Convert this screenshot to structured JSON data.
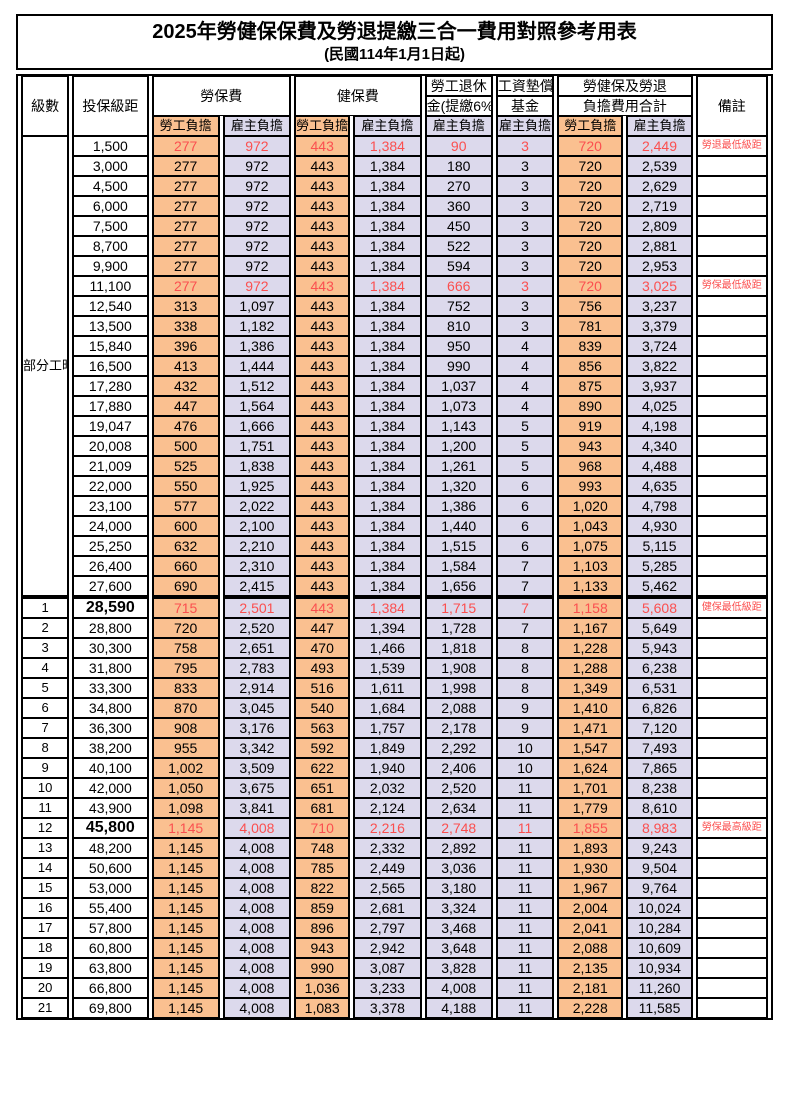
{
  "title": "2025年勞健保保費及勞退提繳三合一費用對照參考用表",
  "subtitle": "(民國114年1月1日起)",
  "header": {
    "col_level": "級數",
    "col_bracket": "投保級距",
    "col_labor": "勞保費",
    "col_health": "健保費",
    "col_pension_1": "勞工退休",
    "col_pension_2": "金(提繳6%)",
    "col_fund_1": "工資墊償",
    "col_fund_2": "基金",
    "col_total_1": "勞健保及勞退",
    "col_total_2": "負擔費用合計",
    "col_remark": "備註",
    "sub_employee": "勞工負擔",
    "sub_employer": "雇主負擔"
  },
  "part_time_label": "部分工時",
  "colors": {
    "employee_bg": "#FAC090",
    "employer_bg": "#DCD9EC",
    "highlight_text": "#FB4F4F"
  },
  "rows": [
    {
      "b": "1,500",
      "v": [
        "277",
        "972",
        "443",
        "1,384",
        "90",
        "3",
        "720",
        "2,449"
      ],
      "r": "勞退最低級距",
      "h": true
    },
    {
      "b": "3,000",
      "v": [
        "277",
        "972",
        "443",
        "1,384",
        "180",
        "3",
        "720",
        "2,539"
      ]
    },
    {
      "b": "4,500",
      "v": [
        "277",
        "972",
        "443",
        "1,384",
        "270",
        "3",
        "720",
        "2,629"
      ]
    },
    {
      "b": "6,000",
      "v": [
        "277",
        "972",
        "443",
        "1,384",
        "360",
        "3",
        "720",
        "2,719"
      ]
    },
    {
      "b": "7,500",
      "v": [
        "277",
        "972",
        "443",
        "1,384",
        "450",
        "3",
        "720",
        "2,809"
      ]
    },
    {
      "b": "8,700",
      "v": [
        "277",
        "972",
        "443",
        "1,384",
        "522",
        "3",
        "720",
        "2,881"
      ]
    },
    {
      "b": "9,900",
      "v": [
        "277",
        "972",
        "443",
        "1,384",
        "594",
        "3",
        "720",
        "2,953"
      ]
    },
    {
      "b": "11,100",
      "v": [
        "277",
        "972",
        "443",
        "1,384",
        "666",
        "3",
        "720",
        "3,025"
      ],
      "r": "勞保最低級距",
      "h": true
    },
    {
      "b": "12,540",
      "v": [
        "313",
        "1,097",
        "443",
        "1,384",
        "752",
        "3",
        "756",
        "3,237"
      ]
    },
    {
      "b": "13,500",
      "v": [
        "338",
        "1,182",
        "443",
        "1,384",
        "810",
        "3",
        "781",
        "3,379"
      ]
    },
    {
      "b": "15,840",
      "v": [
        "396",
        "1,386",
        "443",
        "1,384",
        "950",
        "4",
        "839",
        "3,724"
      ]
    },
    {
      "b": "16,500",
      "v": [
        "413",
        "1,444",
        "443",
        "1,384",
        "990",
        "4",
        "856",
        "3,822"
      ]
    },
    {
      "b": "17,280",
      "v": [
        "432",
        "1,512",
        "443",
        "1,384",
        "1,037",
        "4",
        "875",
        "3,937"
      ]
    },
    {
      "b": "17,880",
      "v": [
        "447",
        "1,564",
        "443",
        "1,384",
        "1,073",
        "4",
        "890",
        "4,025"
      ]
    },
    {
      "b": "19,047",
      "v": [
        "476",
        "1,666",
        "443",
        "1,384",
        "1,143",
        "5",
        "919",
        "4,198"
      ]
    },
    {
      "b": "20,008",
      "v": [
        "500",
        "1,751",
        "443",
        "1,384",
        "1,200",
        "5",
        "943",
        "4,340"
      ]
    },
    {
      "b": "21,009",
      "v": [
        "525",
        "1,838",
        "443",
        "1,384",
        "1,261",
        "5",
        "968",
        "4,488"
      ]
    },
    {
      "b": "22,000",
      "v": [
        "550",
        "1,925",
        "443",
        "1,384",
        "1,320",
        "6",
        "993",
        "4,635"
      ]
    },
    {
      "b": "23,100",
      "v": [
        "577",
        "2,022",
        "443",
        "1,384",
        "1,386",
        "6",
        "1,020",
        "4,798"
      ]
    },
    {
      "b": "24,000",
      "v": [
        "600",
        "2,100",
        "443",
        "1,384",
        "1,440",
        "6",
        "1,043",
        "4,930"
      ]
    },
    {
      "b": "25,250",
      "v": [
        "632",
        "2,210",
        "443",
        "1,384",
        "1,515",
        "6",
        "1,075",
        "5,115"
      ]
    },
    {
      "b": "26,400",
      "v": [
        "660",
        "2,310",
        "443",
        "1,384",
        "1,584",
        "7",
        "1,103",
        "5,285"
      ]
    },
    {
      "b": "27,600",
      "v": [
        "690",
        "2,415",
        "443",
        "1,384",
        "1,656",
        "7",
        "1,133",
        "5,462"
      ]
    },
    {
      "l": "1",
      "b": "28,590",
      "v": [
        "715",
        "2,501",
        "443",
        "1,384",
        "1,715",
        "7",
        "1,158",
        "5,608"
      ],
      "r": "健保最低級距",
      "h": true,
      "em": true,
      "sep": true
    },
    {
      "l": "2",
      "b": "28,800",
      "v": [
        "720",
        "2,520",
        "447",
        "1,394",
        "1,728",
        "7",
        "1,167",
        "5,649"
      ]
    },
    {
      "l": "3",
      "b": "30,300",
      "v": [
        "758",
        "2,651",
        "470",
        "1,466",
        "1,818",
        "8",
        "1,228",
        "5,943"
      ]
    },
    {
      "l": "4",
      "b": "31,800",
      "v": [
        "795",
        "2,783",
        "493",
        "1,539",
        "1,908",
        "8",
        "1,288",
        "6,238"
      ]
    },
    {
      "l": "5",
      "b": "33,300",
      "v": [
        "833",
        "2,914",
        "516",
        "1,611",
        "1,998",
        "8",
        "1,349",
        "6,531"
      ]
    },
    {
      "l": "6",
      "b": "34,800",
      "v": [
        "870",
        "3,045",
        "540",
        "1,684",
        "2,088",
        "9",
        "1,410",
        "6,826"
      ]
    },
    {
      "l": "7",
      "b": "36,300",
      "v": [
        "908",
        "3,176",
        "563",
        "1,757",
        "2,178",
        "9",
        "1,471",
        "7,120"
      ]
    },
    {
      "l": "8",
      "b": "38,200",
      "v": [
        "955",
        "3,342",
        "592",
        "1,849",
        "2,292",
        "10",
        "1,547",
        "7,493"
      ]
    },
    {
      "l": "9",
      "b": "40,100",
      "v": [
        "1,002",
        "3,509",
        "622",
        "1,940",
        "2,406",
        "10",
        "1,624",
        "7,865"
      ]
    },
    {
      "l": "10",
      "b": "42,000",
      "v": [
        "1,050",
        "3,675",
        "651",
        "2,032",
        "2,520",
        "11",
        "1,701",
        "8,238"
      ]
    },
    {
      "l": "11",
      "b": "43,900",
      "v": [
        "1,098",
        "3,841",
        "681",
        "2,124",
        "2,634",
        "11",
        "1,779",
        "8,610"
      ]
    },
    {
      "l": "12",
      "b": "45,800",
      "v": [
        "1,145",
        "4,008",
        "710",
        "2,216",
        "2,748",
        "11",
        "1,855",
        "8,983"
      ],
      "r": "勞保最高級距",
      "h": true,
      "em": true
    },
    {
      "l": "13",
      "b": "48,200",
      "v": [
        "1,145",
        "4,008",
        "748",
        "2,332",
        "2,892",
        "11",
        "1,893",
        "9,243"
      ]
    },
    {
      "l": "14",
      "b": "50,600",
      "v": [
        "1,145",
        "4,008",
        "785",
        "2,449",
        "3,036",
        "11",
        "1,930",
        "9,504"
      ]
    },
    {
      "l": "15",
      "b": "53,000",
      "v": [
        "1,145",
        "4,008",
        "822",
        "2,565",
        "3,180",
        "11",
        "1,967",
        "9,764"
      ]
    },
    {
      "l": "16",
      "b": "55,400",
      "v": [
        "1,145",
        "4,008",
        "859",
        "2,681",
        "3,324",
        "11",
        "2,004",
        "10,024"
      ]
    },
    {
      "l": "17",
      "b": "57,800",
      "v": [
        "1,145",
        "4,008",
        "896",
        "2,797",
        "3,468",
        "11",
        "2,041",
        "10,284"
      ]
    },
    {
      "l": "18",
      "b": "60,800",
      "v": [
        "1,145",
        "4,008",
        "943",
        "2,942",
        "3,648",
        "11",
        "2,088",
        "10,609"
      ]
    },
    {
      "l": "19",
      "b": "63,800",
      "v": [
        "1,145",
        "4,008",
        "990",
        "3,087",
        "3,828",
        "11",
        "2,135",
        "10,934"
      ]
    },
    {
      "l": "20",
      "b": "66,800",
      "v": [
        "1,145",
        "4,008",
        "1,036",
        "3,233",
        "4,008",
        "11",
        "2,181",
        "11,260"
      ]
    },
    {
      "l": "21",
      "b": "69,800",
      "v": [
        "1,145",
        "4,008",
        "1,083",
        "3,378",
        "4,188",
        "11",
        "2,228",
        "11,585"
      ]
    }
  ]
}
